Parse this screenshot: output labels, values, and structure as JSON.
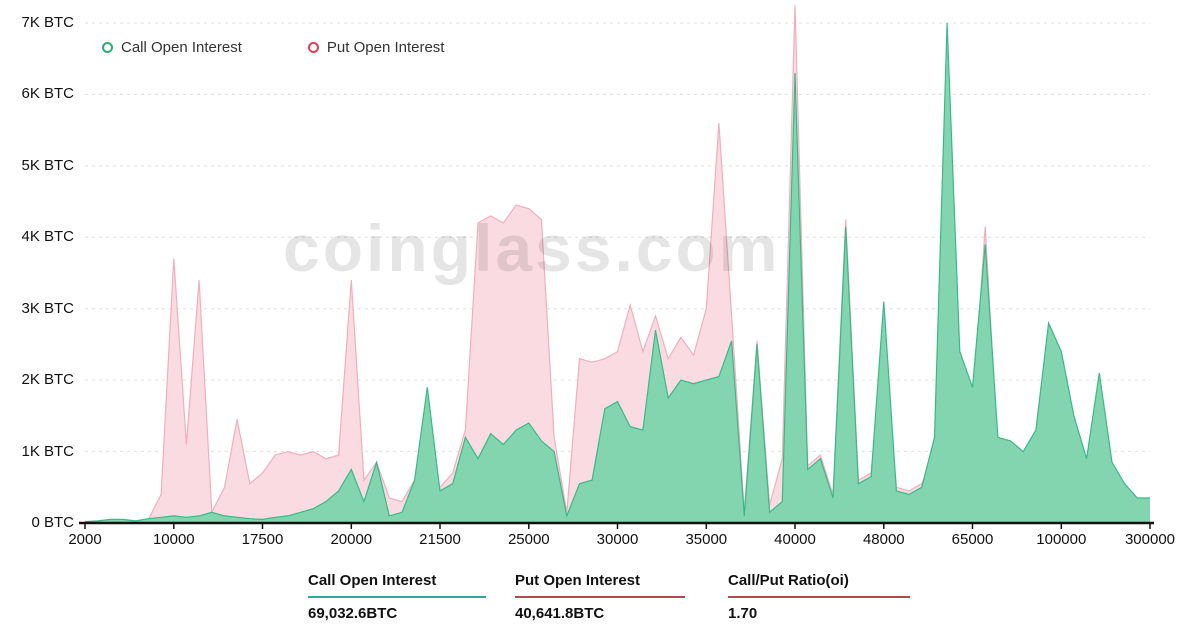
{
  "watermark": "coinglass.com",
  "legend": {
    "items": [
      {
        "label": "Call Open Interest",
        "color": "#2bab76"
      },
      {
        "label": "Put  Open Interest",
        "color": "#e0414f"
      }
    ]
  },
  "stats": {
    "items": [
      {
        "label": "Call Open Interest",
        "value": "69,032.6BTC",
        "underline": "#2fa69a"
      },
      {
        "label": "Put Open Interest",
        "value": "40,641.8BTC",
        "underline": "#b2494d"
      },
      {
        "label": "Call/Put Ratio(oi)",
        "value": "1.70",
        "underline": "#b2494d"
      }
    ]
  },
  "chart_data": {
    "type": "area",
    "title": "",
    "unit": "BTC",
    "ylim": [
      0,
      7000
    ],
    "grid": "dashed-horizontal",
    "legend_position": "top-left",
    "y_tick_values": [
      0,
      1000,
      2000,
      3000,
      4000,
      5000,
      6000,
      7000
    ],
    "y_tick_labels": [
      "0 BTC",
      "1K BTC",
      "2K BTC",
      "3K BTC",
      "4K BTC",
      "5K BTC",
      "6K BTC",
      "7K BTC"
    ],
    "x_tick_labels": [
      "2000",
      "10000",
      "17500",
      "20000",
      "21500",
      "25000",
      "30000",
      "35000",
      "40000",
      "48000",
      "65000",
      "100000",
      "300000"
    ],
    "x_tick_indices": [
      0,
      7,
      14,
      21,
      28,
      35,
      42,
      49,
      56,
      63,
      70,
      77,
      84
    ],
    "series": [
      {
        "name": "Put Open Interest",
        "fill": "#fadbe1",
        "line": "#f2aebc",
        "values": [
          0,
          0,
          10,
          20,
          20,
          50,
          400,
          3700,
          1100,
          3400,
          150,
          500,
          1450,
          550,
          700,
          950,
          1000,
          950,
          1000,
          900,
          950,
          3400,
          600,
          850,
          350,
          300,
          600,
          700,
          500,
          700,
          1300,
          4200,
          4300,
          4200,
          4450,
          4400,
          4250,
          1200,
          150,
          2300,
          2250,
          2300,
          2400,
          3050,
          2400,
          2900,
          2300,
          2600,
          2350,
          3000,
          5600,
          2900,
          150,
          2550,
          250,
          900,
          7250,
          800,
          950,
          400,
          4250,
          600,
          700,
          2500,
          500,
          450,
          550,
          1000,
          4000,
          2000,
          1500,
          4150,
          1000,
          900,
          800,
          1000,
          1300,
          1200,
          800,
          600,
          900,
          500,
          400,
          300,
          300
        ]
      },
      {
        "name": "Call Open Interest",
        "fill": "#82d5ae",
        "line": "#39b989",
        "values": [
          20,
          30,
          50,
          50,
          30,
          60,
          80,
          100,
          80,
          100,
          150,
          100,
          80,
          60,
          50,
          80,
          100,
          150,
          200,
          300,
          450,
          750,
          300,
          850,
          100,
          150,
          600,
          1900,
          450,
          550,
          1200,
          900,
          1250,
          1100,
          1300,
          1400,
          1150,
          1000,
          100,
          550,
          600,
          1600,
          1700,
          1350,
          1300,
          2700,
          1750,
          2000,
          1950,
          2000,
          2050,
          2550,
          100,
          2500,
          150,
          300,
          6300,
          750,
          900,
          350,
          4150,
          550,
          650,
          3100,
          450,
          400,
          500,
          1200,
          7000,
          2400,
          1900,
          3900,
          1200,
          1150,
          1000,
          1300,
          2800,
          2400,
          1500,
          900,
          2100,
          850,
          550,
          350,
          350
        ]
      }
    ]
  }
}
